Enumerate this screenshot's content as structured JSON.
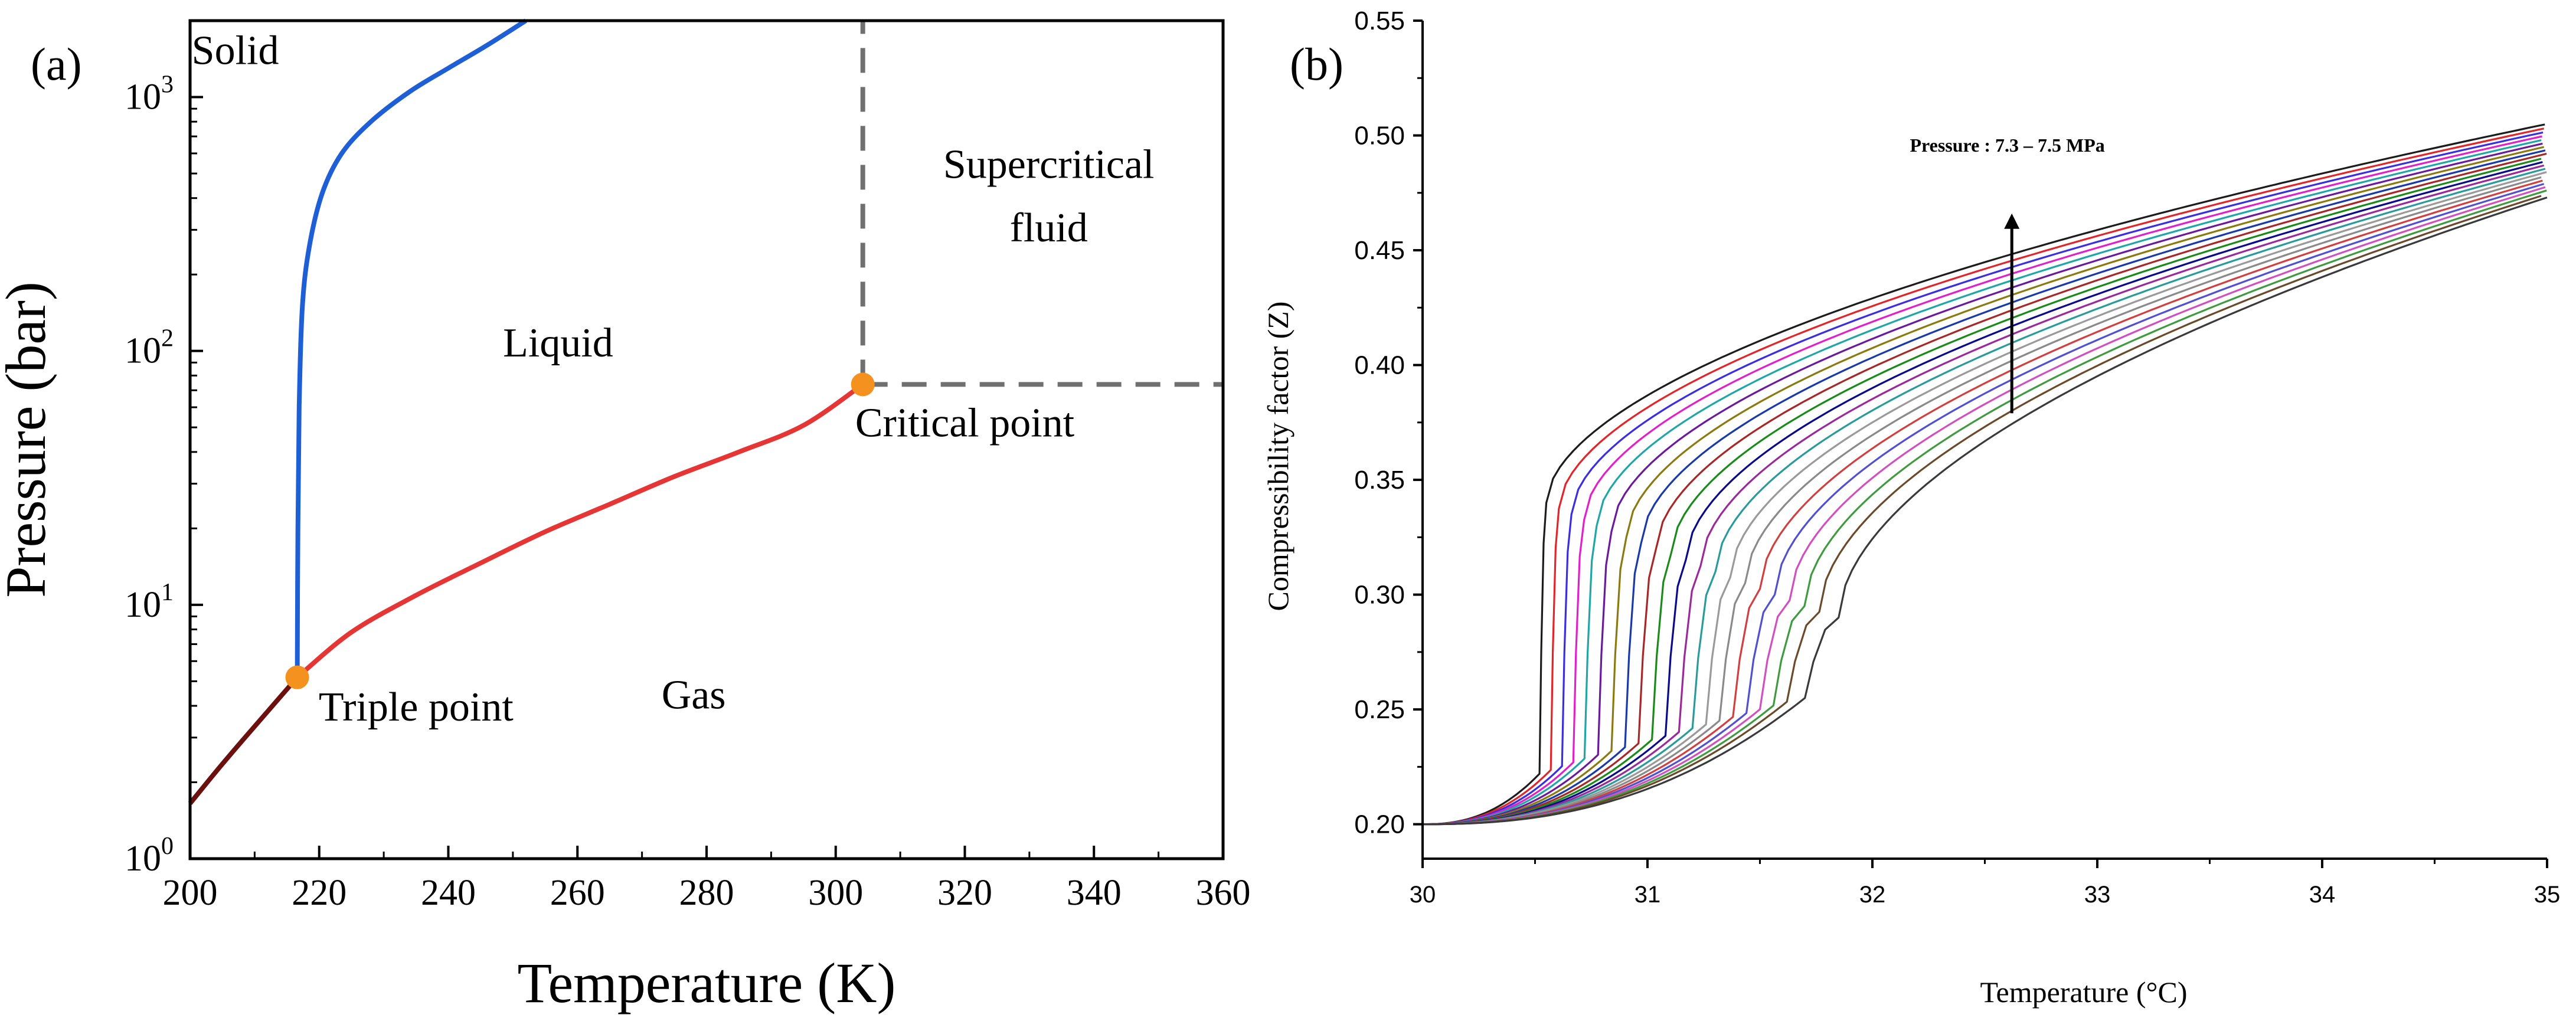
{
  "chart_data": [
    {
      "panel_label": "(a)",
      "type": "line",
      "title": "",
      "xlabel": "Temperature (K)",
      "ylabel": "Pressure (bar)",
      "x_scale": "linear",
      "y_scale": "log",
      "xlim": [
        200,
        360
      ],
      "ylim": [
        1,
        2000
      ],
      "x_ticks": [
        200,
        220,
        240,
        260,
        280,
        300,
        320,
        340,
        360
      ],
      "x_tick_labels": [
        "200",
        "220",
        "240",
        "260",
        "280",
        "300",
        "320",
        "340",
        "360"
      ],
      "y_ticks": [
        1,
        10,
        100,
        1000
      ],
      "y_tick_labels": [
        {
          "base": "10",
          "exp": "0"
        },
        {
          "base": "10",
          "exp": "1"
        },
        {
          "base": "10",
          "exp": "2"
        },
        {
          "base": "10",
          "exp": "3"
        }
      ],
      "series": [
        {
          "name": "sublimation",
          "color": "#6b0f0f",
          "x": [
            200,
            204,
            208,
            212,
            216.6
          ],
          "y": [
            1.65,
            2.2,
            2.9,
            3.8,
            5.18
          ]
        },
        {
          "name": "melting",
          "color": "#1f5fd6",
          "x": [
            216.6,
            216.7,
            216.9,
            217.4,
            218.5,
            220.5,
            223.5,
            228.0,
            234.0,
            240.0,
            246.0,
            252.0
          ],
          "y": [
            5.18,
            20,
            60,
            150,
            260,
            420,
            600,
            800,
            1050,
            1300,
            1600,
            2000
          ]
        },
        {
          "name": "vaporization",
          "color": "#e53535",
          "x": [
            216.6,
            225,
            235,
            245,
            255,
            265,
            275,
            285,
            295,
            304.2
          ],
          "y": [
            5.18,
            7.8,
            10.9,
            14.6,
            19.4,
            24.9,
            32.0,
            40.0,
            50.9,
            73.8
          ]
        }
      ],
      "boundary_lines": [
        {
          "name": "critical-temperature",
          "style": "dashed",
          "color": "#707070",
          "x": 304.2,
          "y_from": 73.8,
          "y_to": 2000
        },
        {
          "name": "critical-pressure",
          "style": "dashed",
          "color": "#707070",
          "y": 73.8,
          "x_from": 304.2,
          "x_to": 360
        }
      ],
      "points": [
        {
          "name": "Triple point",
          "x": 216.6,
          "y": 5.18,
          "color": "#f5911e"
        },
        {
          "name": "Critical point",
          "x": 304.2,
          "y": 73.8,
          "color": "#f5911e"
        }
      ],
      "annotations": [
        {
          "text": "Solid",
          "x": 207,
          "y": 1350
        },
        {
          "text": "Liquid",
          "x": 257,
          "y": 95
        },
        {
          "text": "Supercritical",
          "x": 333,
          "y": 480
        },
        {
          "text": "fluid",
          "x": 333,
          "y": 270
        },
        {
          "text": "Critical point",
          "x": 320,
          "y": 46
        },
        {
          "text": "Triple point",
          "x": 235,
          "y": 3.5
        },
        {
          "text": "Gas",
          "x": 278,
          "y": 3.9
        }
      ]
    },
    {
      "panel_label": "(b)",
      "type": "line",
      "title": "",
      "xlabel": "Temperature (°C)",
      "ylabel": "Compressibility factor (Z)",
      "xlim": [
        30,
        35
      ],
      "ylim": [
        0.185,
        0.55
      ],
      "x_ticks": [
        30,
        31,
        32,
        33,
        34,
        35
      ],
      "x_tick_labels": [
        "30",
        "31",
        "32",
        "33",
        "34",
        "35"
      ],
      "y_ticks": [
        0.2,
        0.25,
        0.3,
        0.35,
        0.4,
        0.45,
        0.5,
        0.55
      ],
      "y_tick_labels": [
        "0.20",
        "0.25",
        "0.30",
        "0.35",
        "0.40",
        "0.45",
        "0.50",
        "0.55"
      ],
      "pressure_range_MPa": [
        7.3,
        7.5
      ],
      "series_count": 21,
      "series_colors": [
        "#1c1c1c",
        "#e0262a",
        "#3a2ee0",
        "#e020c8",
        "#20a6a6",
        "#6a1a9a",
        "#8a7a10",
        "#1a3aa8",
        "#a62828",
        "#1a8a1a",
        "#0a0a8a",
        "#9a2a9a",
        "#2a9a9a",
        "#9a9a9a",
        "#8a8a8a",
        "#d04040",
        "#5050d0",
        "#d050c0",
        "#409a40",
        "#6a4a2a",
        "#3a3a3a"
      ],
      "series_rule": "Z(T) rises from ~0.200 at 30 °C to a vertical jump near the pseudo-critical temperature, then increases smoothly to ~0.473–0.505 at 35 °C",
      "jump_temperatures": [
        30.52,
        30.57,
        30.62,
        30.67,
        30.72,
        30.78,
        30.84,
        30.9,
        30.96,
        31.02,
        31.08,
        31.14,
        31.2,
        31.26,
        31.32,
        31.38,
        31.44,
        31.5,
        31.56,
        31.62,
        31.7
      ],
      "z_at_35C": [
        0.505,
        0.5033,
        0.5017,
        0.5001,
        0.4985,
        0.4969,
        0.4953,
        0.4937,
        0.4921,
        0.4905,
        0.4889,
        0.4873,
        0.4857,
        0.4841,
        0.4825,
        0.4809,
        0.4793,
        0.4777,
        0.4761,
        0.4745,
        0.473
      ],
      "annotation": {
        "text": "Pressure : 7.3 – 7.5 MPa",
        "x": 32.6,
        "y": 0.493
      },
      "arrow": {
        "x": 32.62,
        "y_from": 0.379,
        "y_to": 0.466
      }
    }
  ]
}
